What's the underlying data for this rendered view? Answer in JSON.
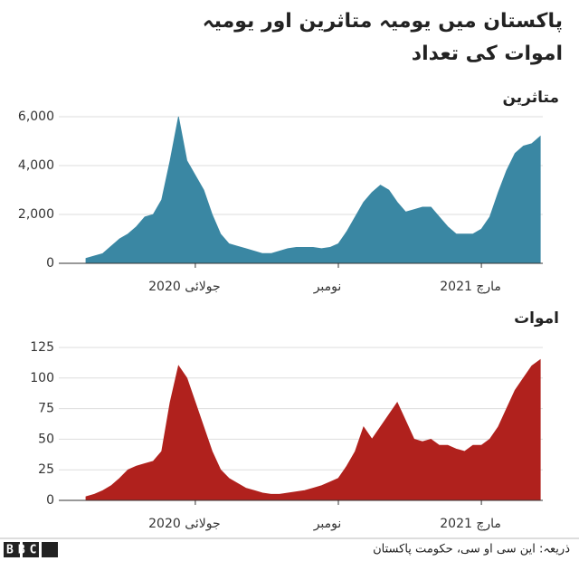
{
  "title": "پاکستان میں یومیہ متاثرین اور یومیہ اموات کی تعداد",
  "source": "ذریعہ: این سی او سی، حکومت پاکستان",
  "logo": "BBC",
  "chart_data": [
    {
      "type": "area",
      "subtitle": "متاثرین",
      "color": "#3a87a3",
      "categories": [
        null,
        null,
        null,
        null,
        null,
        null,
        null,
        null,
        null,
        null,
        null,
        null,
        null,
        "جولائی 2020",
        null,
        null,
        null,
        null,
        null,
        null,
        null,
        null,
        null,
        null,
        null,
        null,
        null,
        null,
        null,
        null,
        "نومبر",
        null,
        null,
        null,
        null,
        null,
        null,
        null,
        null,
        null,
        null,
        null,
        null,
        null,
        null,
        null,
        null,
        "مارچ 2021",
        null,
        null,
        null,
        null,
        null,
        null,
        null
      ],
      "values": [
        200,
        300,
        400,
        700,
        1000,
        1200,
        1500,
        1900,
        2000,
        2600,
        4200,
        6000,
        4200,
        3600,
        3000,
        2000,
        1200,
        800,
        700,
        600,
        500,
        400,
        400,
        500,
        600,
        650,
        650,
        650,
        600,
        650,
        800,
        1300,
        1900,
        2500,
        2900,
        3200,
        3000,
        2500,
        2100,
        2200,
        2300,
        2300,
        1900,
        1500,
        1200,
        1200,
        1200,
        1400,
        1900,
        2900,
        3800,
        4500,
        4800,
        4900,
        5200
      ],
      "ylim": [
        0,
        6400
      ],
      "yticks": [
        0,
        {
          "value": 2000,
          "label": "2,000"
        },
        {
          "value": 4000,
          "label": "4,000"
        },
        {
          "value": 6000,
          "label": "6,000"
        }
      ],
      "grid": true
    },
    {
      "type": "area",
      "subtitle": "اموات",
      "color": "#b0211d",
      "categories": [
        null,
        null,
        null,
        null,
        null,
        null,
        null,
        null,
        null,
        null,
        null,
        null,
        null,
        "جولائی 2020",
        null,
        null,
        null,
        null,
        null,
        null,
        null,
        null,
        null,
        null,
        null,
        null,
        null,
        null,
        null,
        null,
        "نومبر",
        null,
        null,
        null,
        null,
        null,
        null,
        null,
        null,
        null,
        null,
        null,
        null,
        null,
        null,
        null,
        null,
        "مارچ 2021",
        null,
        null,
        null,
        null,
        null,
        null,
        null
      ],
      "values": [
        3,
        5,
        8,
        12,
        18,
        25,
        28,
        30,
        32,
        40,
        80,
        110,
        100,
        80,
        60,
        40,
        25,
        18,
        14,
        10,
        8,
        6,
        5,
        5,
        6,
        7,
        8,
        10,
        12,
        15,
        18,
        28,
        40,
        60,
        50,
        60,
        70,
        80,
        65,
        50,
        48,
        50,
        45,
        45,
        42,
        40,
        45,
        45,
        50,
        60,
        75,
        90,
        100,
        110,
        115
      ],
      "ylim": [
        0,
        130
      ],
      "yticks": [
        0,
        25,
        50,
        75,
        100,
        125
      ],
      "grid": true
    }
  ]
}
